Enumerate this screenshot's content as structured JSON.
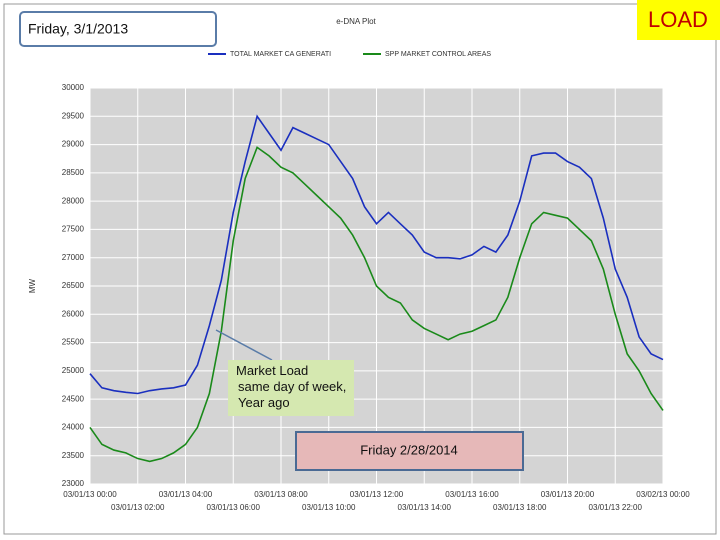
{
  "chart_data": {
    "type": "line",
    "title": "e-DNA Plot",
    "day_label": "Friday, 3/1/2013",
    "tag": "LOAD",
    "annotation": "Market Load same day of week, Year ago",
    "date_box": "Friday 2/28/2014",
    "ylabel": "MW",
    "x": [
      0,
      0.5,
      1,
      1.5,
      2,
      2.5,
      3,
      3.5,
      4,
      4.5,
      5,
      5.5,
      6,
      6.5,
      7,
      7.5,
      8,
      8.5,
      9,
      9.5,
      10,
      10.5,
      11,
      11.5,
      12,
      12.5,
      13,
      13.5,
      14,
      14.5,
      15,
      15.5,
      16,
      16.5,
      17,
      17.5,
      18,
      18.5,
      19,
      19.5,
      20,
      20.5,
      21,
      21.5,
      22,
      22.5,
      23,
      23.5,
      24
    ],
    "series": [
      {
        "name": "TOTAL MARKET CA GENERATI",
        "color": "#1a2fbf",
        "values": [
          24950,
          24700,
          24650,
          24620,
          24600,
          24650,
          24680,
          24700,
          24750,
          25100,
          25800,
          26600,
          27800,
          28700,
          29500,
          29200,
          28900,
          29300,
          29200,
          29100,
          29000,
          28700,
          28400,
          27900,
          27600,
          27800,
          27600,
          27400,
          27100,
          27000,
          27000,
          26980,
          27050,
          27200,
          27100,
          27400,
          28000,
          28800,
          28850,
          28850,
          28700,
          28600,
          28400,
          27700,
          26800,
          26300,
          25600,
          25300,
          25200
        ]
      },
      {
        "name": "SPP MARKET CONTROL AREAS",
        "color": "#1a8a1a",
        "values": [
          24000,
          23700,
          23600,
          23550,
          23450,
          23400,
          23450,
          23550,
          23700,
          24000,
          24600,
          25700,
          27300,
          28400,
          28950,
          28800,
          28600,
          28500,
          28300,
          28100,
          27900,
          27700,
          27400,
          27000,
          26500,
          26300,
          26200,
          25900,
          25750,
          25650,
          25550,
          25650,
          25700,
          25800,
          25900,
          26300,
          27000,
          27600,
          27800,
          27750,
          27700,
          27500,
          27300,
          26800,
          26000,
          25300,
          25000,
          24600,
          24300
        ]
      }
    ],
    "xlim": [
      0,
      24
    ],
    "xticks": [
      {
        "value": 0,
        "label": "03/01/13 00:00"
      },
      {
        "value": 2,
        "label": "03/01/13 02:00"
      },
      {
        "value": 4,
        "label": "03/01/13 04:00"
      },
      {
        "value": 6,
        "label": "03/01/13 06:00"
      },
      {
        "value": 8,
        "label": "03/01/13 08:00"
      },
      {
        "value": 10,
        "label": "03/01/13 10:00"
      },
      {
        "value": 12,
        "label": "03/01/13 12:00"
      },
      {
        "value": 14,
        "label": "03/01/13 14:00"
      },
      {
        "value": 16,
        "label": "03/01/13 16:00"
      },
      {
        "value": 18,
        "label": "03/01/13 18:00"
      },
      {
        "value": 20,
        "label": "03/01/13 20:00"
      },
      {
        "value": 22,
        "label": "03/01/13 22:00"
      },
      {
        "value": 24,
        "label": "03/02/13 00:00"
      }
    ],
    "ylim": [
      23000,
      30000
    ],
    "yticks": [
      23000,
      23500,
      24000,
      24500,
      25000,
      25500,
      26000,
      26500,
      27000,
      27500,
      28000,
      28500,
      29000,
      29500,
      30000
    ],
    "grid": true
  }
}
